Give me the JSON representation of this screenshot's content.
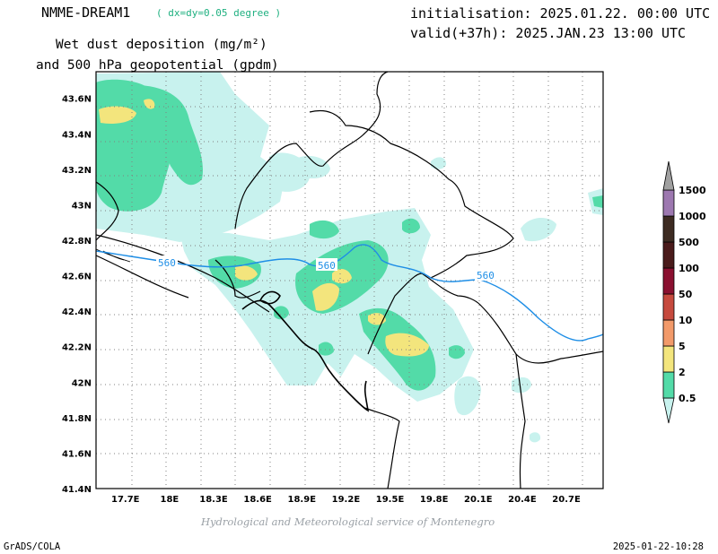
{
  "header": {
    "model": "NMME-DREAM1",
    "resolution": "( dx=dy=0.05 degree )",
    "field_line1": "Wet dust deposition (mg/m²)",
    "field_line2": "and 500 hPa geopotential (gpdm)",
    "init": "initialisation: 2025.01.22. 00:00 UTC",
    "valid": "valid(+37h): 2025.JAN.23 13:00 UTC"
  },
  "footer": {
    "credit": "Hydrological and Meteorological service of Montenegro",
    "software": "GrADS/COLA",
    "timestamp": "2025-01-22-10:28"
  },
  "map": {
    "lon_range": [
      17.5,
      20.95
    ],
    "lat_range": [
      41.4,
      43.75
    ],
    "x_ticks": [
      "17.7E",
      "18E",
      "18.3E",
      "18.6E",
      "18.9E",
      "19.2E",
      "19.5E",
      "19.8E",
      "20.1E",
      "20.4E",
      "20.7E"
    ],
    "x_tick_values": [
      17.7,
      18.0,
      18.3,
      18.6,
      18.9,
      19.2,
      19.5,
      19.8,
      20.1,
      20.4,
      20.7
    ],
    "y_ticks": [
      "41.4N",
      "41.6N",
      "41.8N",
      "42N",
      "42.2N",
      "42.4N",
      "42.6N",
      "42.8N",
      "43N",
      "43.2N",
      "43.4N",
      "43.6N"
    ],
    "y_tick_values": [
      41.4,
      41.6,
      41.8,
      42.0,
      42.2,
      42.4,
      42.6,
      42.8,
      43.0,
      43.2,
      43.4,
      43.6
    ],
    "contour_label": "560",
    "contour_color": "#1e8ee6"
  },
  "colorbar": {
    "labels": [
      "0.5",
      "2",
      "5",
      "10",
      "50",
      "100",
      "500",
      "1000",
      "1500"
    ],
    "colors": [
      "#c8f2ee",
      "#53dba8",
      "#f3e57d",
      "#f29a6a",
      "#c64a3e",
      "#8a1030",
      "#4a1b1b",
      "#3d2b22",
      "#9d78b0",
      "#a0a0a0"
    ]
  }
}
